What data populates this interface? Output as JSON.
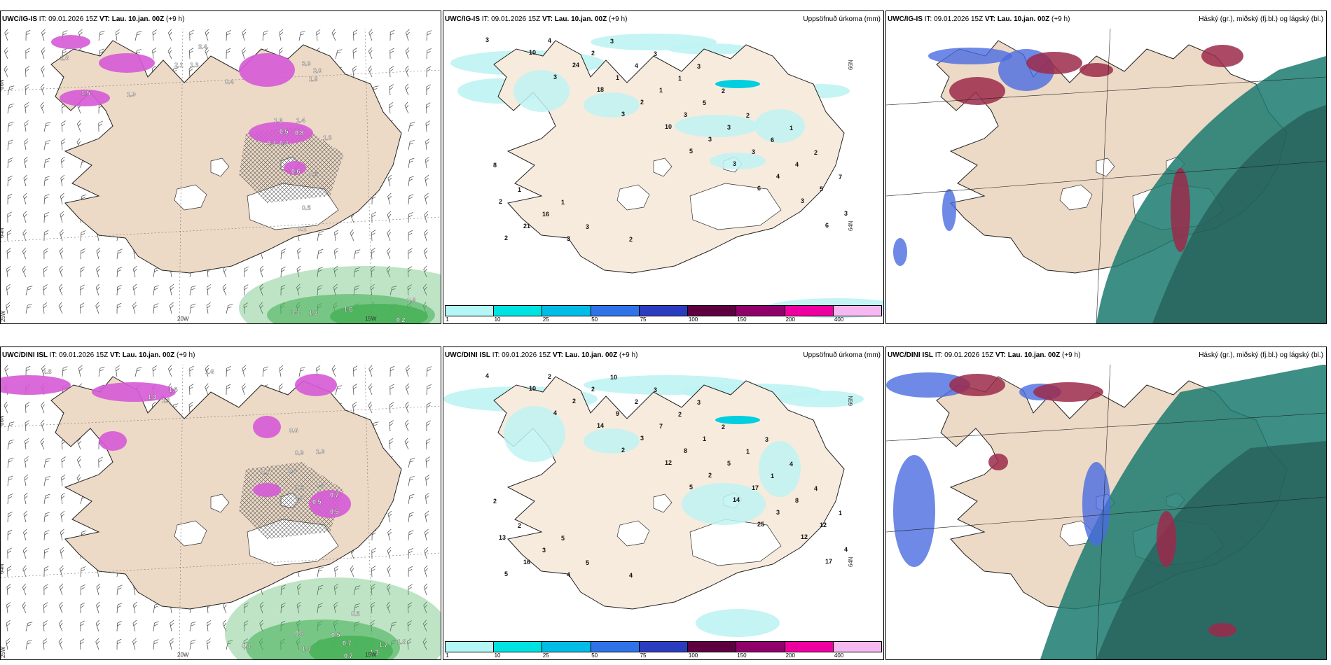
{
  "rows": [
    {
      "model_label": "UWC/IG-IS",
      "header": {
        "it_label": "IT:",
        "it_value": "09.01.2026 15Z",
        "vt_label": "VT:",
        "vt_value": "Lau. 10.jan. 00Z",
        "lead": "(+9 h)"
      },
      "panel1": {
        "grid_labels": [
          "66N",
          "64N",
          "25W",
          "20W",
          "15W"
        ],
        "precip_values": [
          "1.6",
          "3.4",
          "2.1",
          "1.3",
          "1.5",
          "1.9",
          "3.0",
          "2.0",
          "1.8",
          "1.6",
          "1.4",
          "0.5",
          "0.8",
          "0.4",
          "1.3",
          "0.4",
          "0.6",
          "0.5",
          "0.5",
          "0.2",
          "1.1",
          "1.3",
          "1.6",
          "0.8",
          "0.2",
          "0.4"
        ]
      },
      "panel2": {
        "title": "Uppsöfnuð úrkoma (mm)",
        "grid_labels": [
          "66N",
          "64N"
        ],
        "numbers": [
          "3",
          "3",
          "3",
          "5",
          "6",
          "6",
          "10",
          "18",
          "10",
          "3",
          "3",
          "2",
          "24",
          "2",
          "3",
          "4",
          "3",
          "4",
          "1",
          "3",
          "3",
          "5",
          "21",
          "2",
          "1",
          "3",
          "4",
          "2",
          "3",
          "4",
          "5",
          "6",
          "7",
          "16",
          "3",
          "1",
          "2",
          "2",
          "1",
          "3",
          "3",
          "2",
          "1",
          "8",
          "1",
          "2",
          "3"
        ]
      },
      "panel3": {
        "title": "Háský (gr.), miðský (fj.bl.) og lágský (bl.)"
      }
    },
    {
      "model_label": "UWC/DINI ISL",
      "header": {
        "it_label": "IT:",
        "it_value": "09.01.2026 15Z",
        "vt_label": "VT:",
        "vt_value": "Lau. 10.jan. 00Z",
        "lead": "(+9 h)"
      },
      "panel1": {
        "grid_labels": [
          "66N",
          "64N",
          "25W",
          "20W",
          "15W"
        ],
        "precip_values": [
          "1.8",
          "1.6",
          "1.5",
          "1.3",
          "1.1",
          "0.6",
          "0.5",
          "0.5",
          "0.9",
          "1.0",
          "0.5",
          "0.4",
          "0.7",
          "0.3",
          "0.5",
          "0.5",
          "0.8",
          "1.4",
          "0.5",
          "0.7",
          "0.7",
          "1.3",
          "1.7",
          "1.8",
          "0.5",
          "0.4"
        ]
      },
      "panel2": {
        "title": "Uppsöfnuð úrkoma (mm)",
        "grid_labels": [
          "66N",
          "64N"
        ],
        "numbers": [
          "4",
          "4",
          "2",
          "5",
          "25",
          "17",
          "10",
          "14",
          "12",
          "14",
          "12",
          "5",
          "2",
          "3",
          "2",
          "3",
          "4",
          "2",
          "9",
          "8",
          "17",
          "12",
          "16",
          "2",
          "7",
          "5",
          "8",
          "13",
          "4",
          "2",
          "1",
          "1",
          "1",
          "3",
          "10",
          "2",
          "1",
          "4",
          "2",
          "5",
          "3",
          "2",
          "4",
          "2",
          "5",
          "4",
          "3",
          "3"
        ]
      },
      "panel3": {
        "title": "Háský (gr.), miðský (fj.bl.) og lágský (bl.)"
      }
    }
  ],
  "colorbar": {
    "ticks": [
      "1",
      "10",
      "25",
      "50",
      "75",
      "100",
      "150",
      "200",
      "400"
    ],
    "colors": [
      "#b4f5f5",
      "#00e1e1",
      "#00bce6",
      "#2f73e8",
      "#2b3dbf",
      "#5e0040",
      "#90006b",
      "#ee00a0",
      "#f5b8f0"
    ]
  },
  "colors": {
    "land": "#f7ebdd",
    "land_dark": "#ecd9c6",
    "precip_pink": "#d65ad6",
    "precip_green": "#49b35a",
    "cloud_high": "#1b7a6e",
    "cloud_mid": "#33468f",
    "cloud_low": "#4a6be0",
    "cloud_red": "#9c2a4a"
  }
}
